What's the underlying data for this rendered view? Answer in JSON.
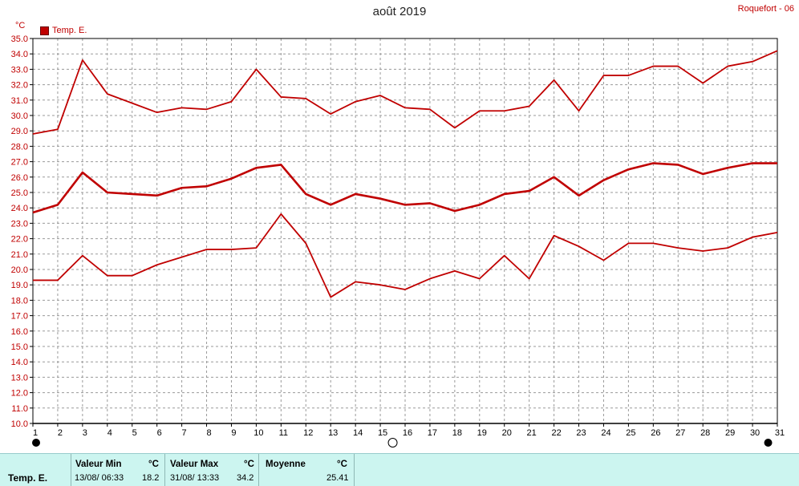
{
  "header": {
    "title": "août 2019",
    "station": "Roquefort - 06",
    "unit": "°C",
    "legend_label": "Temp. E."
  },
  "chart_data": {
    "type": "line",
    "title": "août 2019",
    "ylabel": "°C",
    "ylim": [
      10.0,
      35.0
    ],
    "y_ticks": [
      "10.0",
      "11.0",
      "12.0",
      "13.0",
      "14.0",
      "15.0",
      "16.0",
      "17.0",
      "18.0",
      "19.0",
      "20.0",
      "21.0",
      "22.0",
      "23.0",
      "24.0",
      "25.0",
      "26.0",
      "27.0",
      "28.0",
      "29.0",
      "30.0",
      "31.0",
      "32.0",
      "33.0",
      "34.0",
      "35.0"
    ],
    "x": [
      1,
      2,
      3,
      4,
      5,
      6,
      7,
      8,
      9,
      10,
      11,
      12,
      13,
      14,
      15,
      16,
      17,
      18,
      19,
      20,
      21,
      22,
      23,
      24,
      25,
      26,
      27,
      28,
      29,
      30,
      31
    ],
    "x_ticks": [
      "1",
      "2",
      "3",
      "4",
      "5",
      "6",
      "7",
      "8",
      "9",
      "10",
      "11",
      "12",
      "13",
      "14",
      "15",
      "16",
      "17",
      "18",
      "19",
      "20",
      "21",
      "22",
      "23",
      "24",
      "25",
      "26",
      "27",
      "28",
      "29",
      "30",
      "31"
    ],
    "grid": true,
    "legend": "top-left",
    "moon_phases": [
      {
        "day": 1,
        "phase": "new"
      },
      {
        "day": 15.5,
        "phase": "full"
      },
      {
        "day": 30.5,
        "phase": "new"
      }
    ],
    "series": [
      {
        "role": "max",
        "color": "#c00000",
        "values": [
          28.8,
          29.1,
          33.6,
          31.4,
          30.8,
          30.2,
          30.5,
          30.4,
          30.9,
          33.0,
          31.2,
          31.1,
          30.1,
          30.9,
          31.3,
          30.5,
          30.4,
          29.2,
          30.3,
          30.3,
          30.6,
          32.3,
          30.3,
          32.6,
          32.6,
          33.2,
          33.2,
          32.1,
          33.2,
          33.5,
          34.2
        ]
      },
      {
        "role": "mean",
        "color": "#c00000",
        "values": [
          23.7,
          24.2,
          26.3,
          25.0,
          24.9,
          24.8,
          25.3,
          25.4,
          25.9,
          26.6,
          26.8,
          24.9,
          24.2,
          24.9,
          24.6,
          24.2,
          24.3,
          23.8,
          24.2,
          24.9,
          25.1,
          26.0,
          24.8,
          25.8,
          26.5,
          26.9,
          26.8,
          26.2,
          26.6,
          26.9,
          26.9
        ]
      },
      {
        "role": "min",
        "color": "#c00000",
        "values": [
          19.3,
          19.3,
          20.9,
          19.6,
          19.6,
          20.3,
          20.8,
          21.3,
          21.3,
          21.4,
          23.6,
          21.7,
          18.2,
          19.2,
          19.0,
          18.7,
          19.4,
          19.9,
          19.4,
          20.9,
          19.4,
          22.2,
          21.5,
          20.6,
          21.7,
          21.7,
          21.4,
          21.2,
          21.4,
          22.1,
          22.4
        ]
      }
    ]
  },
  "summary": {
    "series_name": "Temp. E.",
    "min_header": "Valeur Min",
    "min_unit": "°C",
    "min_date": "13/08/  06:33",
    "min_value": "18.2",
    "max_header": "Valeur Max",
    "max_unit": "°C",
    "max_date": "31/08/  13:33",
    "max_value": "34.2",
    "avg_header": "Moyenne",
    "avg_unit": "°C",
    "avg_value": "25.41"
  }
}
